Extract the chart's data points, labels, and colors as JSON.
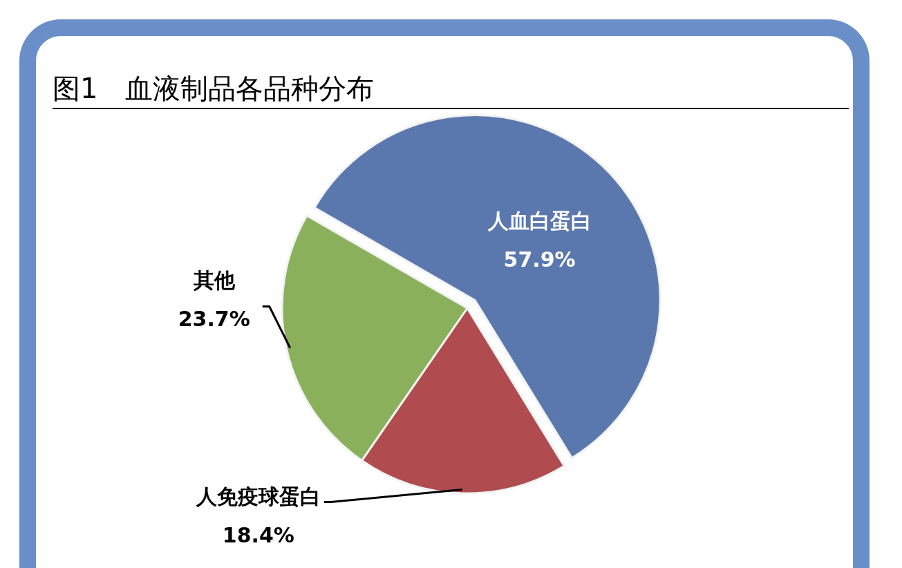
{
  "chart_data": {
    "type": "pie",
    "title": "图1　血液制品各品种分布",
    "categories": [
      "人血白蛋白",
      "人免疫球蛋白",
      "其他"
    ],
    "values": [
      57.9,
      18.4,
      23.7
    ],
    "colors": [
      "#5b78ae",
      "#b04b4f",
      "#8bb05c"
    ],
    "value_labels": [
      "57.9%",
      "18.4%",
      "23.7%"
    ]
  }
}
